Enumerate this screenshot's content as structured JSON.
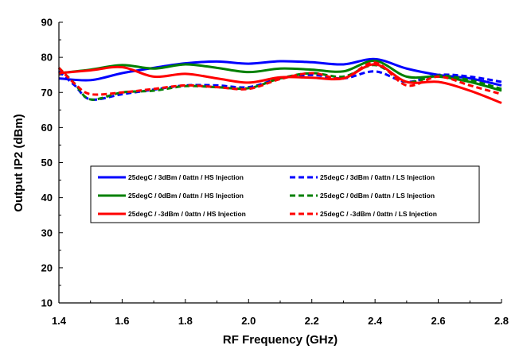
{
  "chart_data": {
    "type": "line",
    "title": "",
    "xlabel": "RF Frequency (GHz)",
    "ylabel": "Output IP2 (dBm)",
    "xlim": [
      1.4,
      2.8
    ],
    "ylim": [
      10,
      90
    ],
    "x_ticks": [
      "1.4",
      "1.6",
      "1.8",
      "2.0",
      "2.2",
      "2.4",
      "2.6",
      "2.8"
    ],
    "y_ticks": [
      "10",
      "20",
      "30",
      "40",
      "50",
      "60",
      "70",
      "80",
      "90"
    ],
    "grid": false,
    "legend_position": "lower-middle, inside plot, boxed",
    "series": [
      {
        "name": "25degC /  3dBm /  0attn /  HS Injection",
        "color": "#0000ff",
        "dash": "solid",
        "x": [
          1.4,
          1.5,
          1.6,
          1.7,
          1.8,
          1.9,
          2.0,
          2.1,
          2.2,
          2.3,
          2.4,
          2.5,
          2.6,
          2.7,
          2.8
        ],
        "y": [
          74.0,
          73.5,
          75.5,
          77.0,
          78.3,
          78.8,
          78.2,
          78.9,
          78.6,
          78.0,
          79.5,
          76.8,
          75.0,
          74.0,
          72.0
        ]
      },
      {
        "name": "25degC /  3dBm /  0attn /  LS Injection",
        "color": "#0000ff",
        "dash": "dashed",
        "x": [
          1.4,
          1.45,
          1.5,
          1.6,
          1.7,
          1.8,
          1.9,
          2.0,
          2.1,
          2.2,
          2.3,
          2.4,
          2.5,
          2.6,
          2.7,
          2.8
        ],
        "y": [
          76.0,
          72.0,
          68.0,
          69.5,
          70.8,
          72.0,
          72.0,
          71.5,
          74.0,
          75.0,
          74.0,
          76.0,
          73.0,
          75.0,
          74.5,
          73.0
        ]
      },
      {
        "name": "25degC /  0dBm /  0attn /  HS Injection",
        "color": "#008000",
        "dash": "solid",
        "x": [
          1.4,
          1.5,
          1.6,
          1.7,
          1.8,
          1.9,
          2.0,
          2.1,
          2.2,
          2.3,
          2.4,
          2.5,
          2.6,
          2.7,
          2.8
        ],
        "y": [
          75.5,
          76.5,
          77.8,
          76.8,
          78.0,
          77.0,
          75.8,
          76.8,
          76.5,
          76.0,
          79.0,
          74.5,
          74.5,
          73.0,
          70.5
        ]
      },
      {
        "name": "25degC /  0dBm /  0attn /  LS Injection",
        "color": "#008000",
        "dash": "dashed",
        "x": [
          1.4,
          1.45,
          1.5,
          1.6,
          1.7,
          1.8,
          1.9,
          2.0,
          2.1,
          2.2,
          2.3,
          2.4,
          2.5,
          2.6,
          2.7,
          2.8
        ],
        "y": [
          77.0,
          72.5,
          68.0,
          70.0,
          70.5,
          71.8,
          71.5,
          71.2,
          74.0,
          75.5,
          74.5,
          77.8,
          73.0,
          74.8,
          73.5,
          71.0
        ]
      },
      {
        "name": "25degC /  -3dBm /  0attn /  HS Injection",
        "color": "#ff0000",
        "dash": "solid",
        "x": [
          1.4,
          1.5,
          1.6,
          1.7,
          1.8,
          1.9,
          2.0,
          2.1,
          2.2,
          2.3,
          2.4,
          2.5,
          2.6,
          2.7,
          2.8
        ],
        "y": [
          75.5,
          76.3,
          77.2,
          74.5,
          75.3,
          74.0,
          72.8,
          74.3,
          74.2,
          74.0,
          78.0,
          73.0,
          73.0,
          70.5,
          67.0
        ]
      },
      {
        "name": "25degC /  -3dBm /  0attn /  LS Injection",
        "color": "#ff0000",
        "dash": "dashed",
        "x": [
          1.4,
          1.45,
          1.5,
          1.6,
          1.7,
          1.8,
          1.9,
          2.0,
          2.1,
          2.2,
          2.3,
          2.4,
          2.5,
          2.6,
          2.7,
          2.8
        ],
        "y": [
          77.0,
          72.5,
          69.5,
          70.0,
          71.0,
          72.0,
          71.5,
          71.0,
          73.8,
          75.5,
          74.0,
          78.5,
          72.0,
          74.5,
          72.0,
          69.5
        ]
      }
    ]
  }
}
